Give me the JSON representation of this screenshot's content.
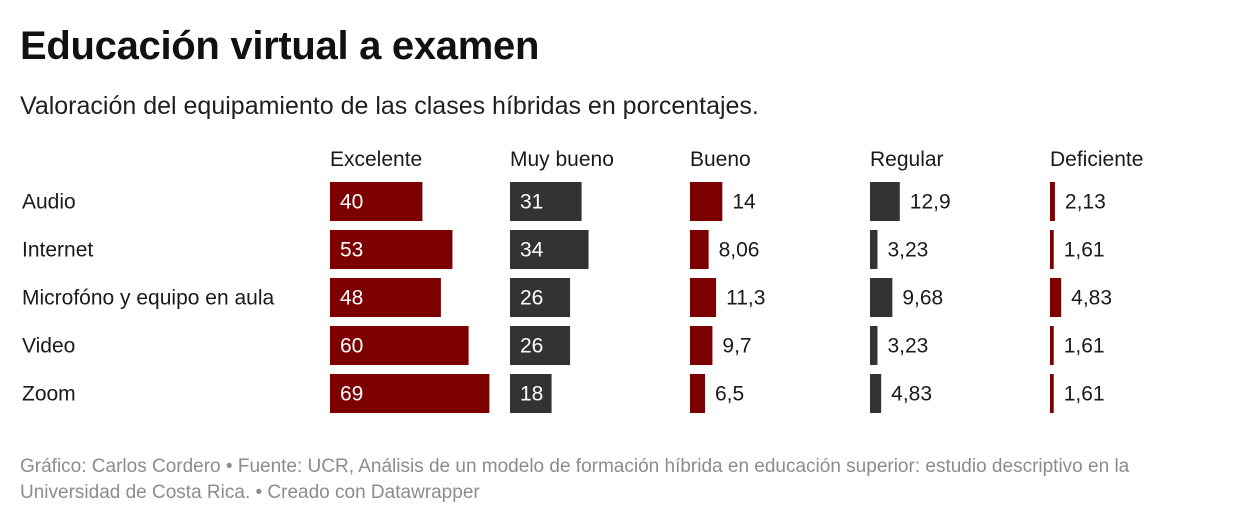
{
  "header": {
    "title": "Educación virtual a examen",
    "subtitle": "Valoración del equipamiento de las clases híbridas en porcentajes."
  },
  "chart_data": {
    "type": "bar",
    "layout": "small-multiples",
    "title": "Educación virtual a examen",
    "subtitle": "Valoración del equipamiento de las clases híbridas en porcentajes.",
    "categories": [
      "Audio",
      "Internet",
      "Microfóno y equipo en aula",
      "Video",
      "Zoom"
    ],
    "series": [
      {
        "name": "Excelente",
        "color": "#7d0000",
        "values": [
          40,
          53,
          48,
          60,
          69
        ],
        "labels": [
          "40",
          "53",
          "48",
          "60",
          "69"
        ]
      },
      {
        "name": "Muy bueno",
        "color": "#333333",
        "values": [
          31,
          34,
          26,
          26,
          18
        ],
        "labels": [
          "31",
          "34",
          "26",
          "26",
          "18"
        ]
      },
      {
        "name": "Bueno",
        "color": "#7d0000",
        "values": [
          14,
          8.06,
          11.3,
          9.7,
          6.5
        ],
        "labels": [
          "14",
          "8,06",
          "11,3",
          "9,7",
          "6,5"
        ]
      },
      {
        "name": "Regular",
        "color": "#333333",
        "values": [
          12.9,
          3.23,
          9.68,
          3.23,
          4.83
        ],
        "labels": [
          "12,9",
          "3,23",
          "9,68",
          "3,23",
          "4,83"
        ]
      },
      {
        "name": "Deficiente",
        "color": "#7d0000",
        "values": [
          2.13,
          1.61,
          4.83,
          1.61,
          1.61
        ],
        "labels": [
          "2,13",
          "1,61",
          "4,83",
          "1,61",
          "1,61"
        ]
      }
    ],
    "xlim": [
      0,
      100
    ],
    "xlabel": "",
    "ylabel": "",
    "grid": false
  },
  "footer": {
    "credit": "Gráfico: Carlos Cordero • Fuente: UCR, Análisis de un modelo de formación híbrida en educación superior: estudio descriptivo en la Universidad de Costa Rica. • Creado con Datawrapper"
  }
}
